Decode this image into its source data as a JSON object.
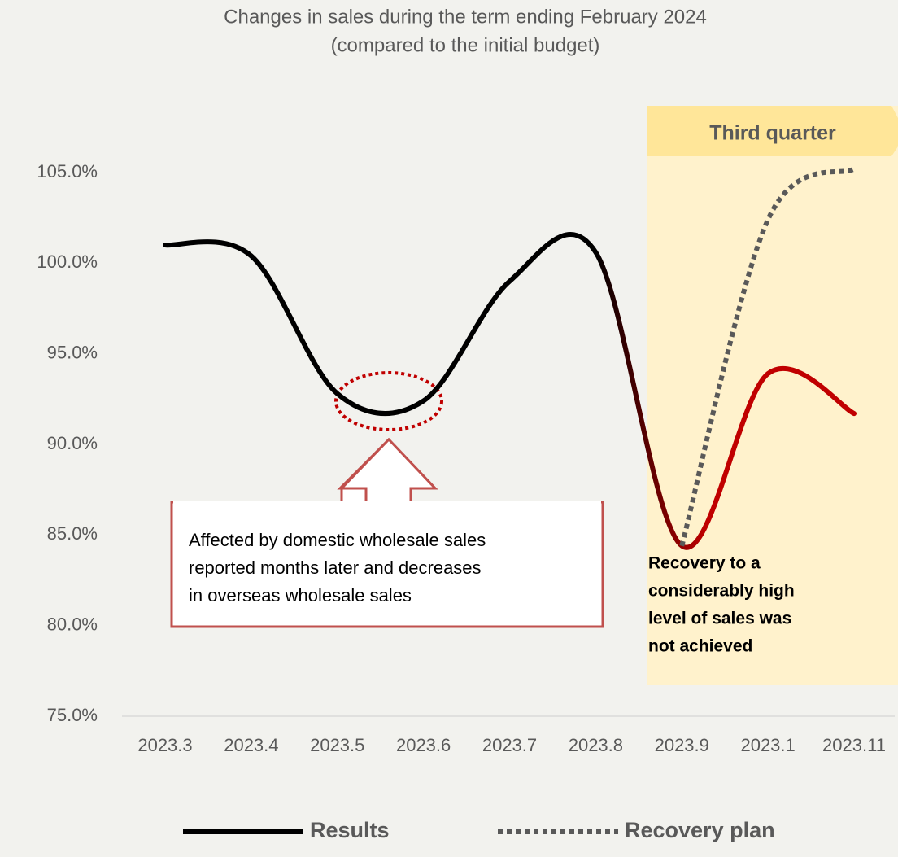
{
  "chart_data": {
    "type": "line",
    "title": "Changes in sales during the term ending February 2024",
    "subtitle": "(compared to the initial budget)",
    "categories": [
      "2023.3",
      "2023.4",
      "2023.5",
      "2023.6",
      "2023.7",
      "2023.8",
      "2023.9",
      "2023.1",
      "2023.11"
    ],
    "series": [
      {
        "name": "Results",
        "color": "#000000",
        "end_color": "#c00000",
        "values": [
          101.0,
          100.4,
          92.8,
          92.4,
          99.0,
          100.6,
          84.4,
          93.9,
          91.7
        ]
      },
      {
        "name": "Recovery plan",
        "color": "#595959",
        "dashed": true,
        "values": [
          null,
          null,
          null,
          null,
          null,
          null,
          84.4,
          102.4,
          105.2
        ]
      }
    ],
    "ylim": [
      75,
      105
    ],
    "yticks": [
      {
        "value": 75,
        "label": "75.0%"
      },
      {
        "value": 80,
        "label": "80.0%"
      },
      {
        "value": 85,
        "label": "85.0%"
      },
      {
        "value": 90,
        "label": "90.0%"
      },
      {
        "value": 95,
        "label": "95.0%"
      },
      {
        "value": 100,
        "label": "100.0%"
      },
      {
        "value": 105,
        "label": "105.0%"
      }
    ],
    "legend": "bottom",
    "annotations": {
      "third_quarter": "Third quarter",
      "callout": [
        "Affected by domestic wholesale sales",
        "reported months later and decreases",
        "in overseas wholesale sales"
      ],
      "note": [
        "Recovery to a",
        "considerably high",
        "level of sales was",
        "not achieved"
      ]
    }
  }
}
